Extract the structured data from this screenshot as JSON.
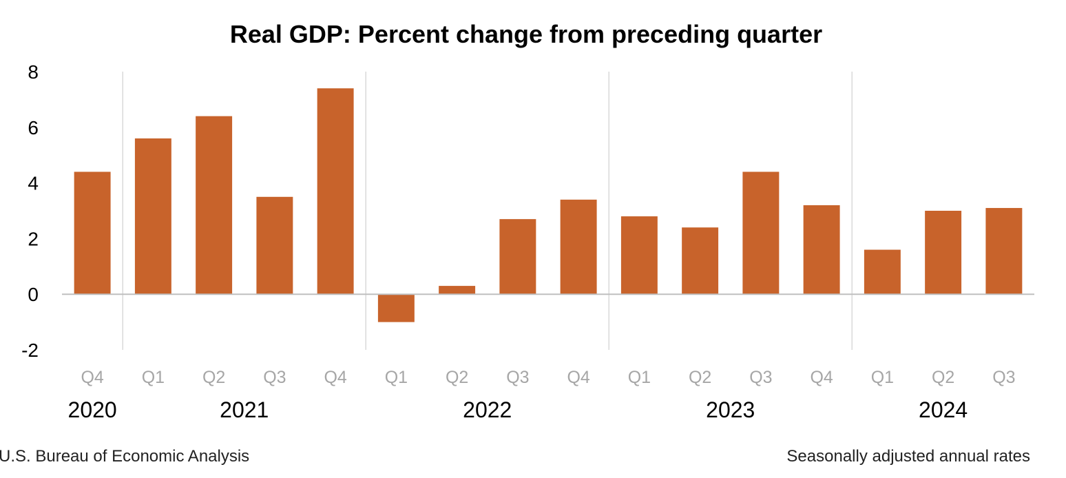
{
  "chart_data": {
    "type": "bar",
    "title": "Real GDP:  Percent change from preceding quarter",
    "xlabel": "",
    "ylabel": "",
    "ylim": [
      -2,
      8
    ],
    "yticks": [
      "8",
      "6",
      "4",
      "2",
      "0",
      "-2"
    ],
    "grid": false,
    "legend": "none",
    "bar_color": "#C8632B",
    "categories": [
      "Q4",
      "Q1",
      "Q2",
      "Q3",
      "Q4",
      "Q1",
      "Q2",
      "Q3",
      "Q4",
      "Q1",
      "Q2",
      "Q3",
      "Q4",
      "Q1",
      "Q2",
      "Q3"
    ],
    "years": [
      {
        "label": "2020",
        "span": [
          0,
          0
        ]
      },
      {
        "label": "2021",
        "span": [
          1,
          4
        ]
      },
      {
        "label": "2022",
        "span": [
          5,
          8
        ]
      },
      {
        "label": "2023",
        "span": [
          9,
          12
        ]
      },
      {
        "label": "2024",
        "span": [
          13,
          15
        ]
      }
    ],
    "values": [
      4.4,
      5.6,
      6.4,
      3.5,
      7.4,
      -1.0,
      0.3,
      2.7,
      3.4,
      2.8,
      2.4,
      4.4,
      3.2,
      1.6,
      3.0,
      3.1
    ]
  },
  "footer": {
    "source": "U.S. Bureau of Economic Analysis",
    "note": "Seasonally adjusted annual rates"
  }
}
